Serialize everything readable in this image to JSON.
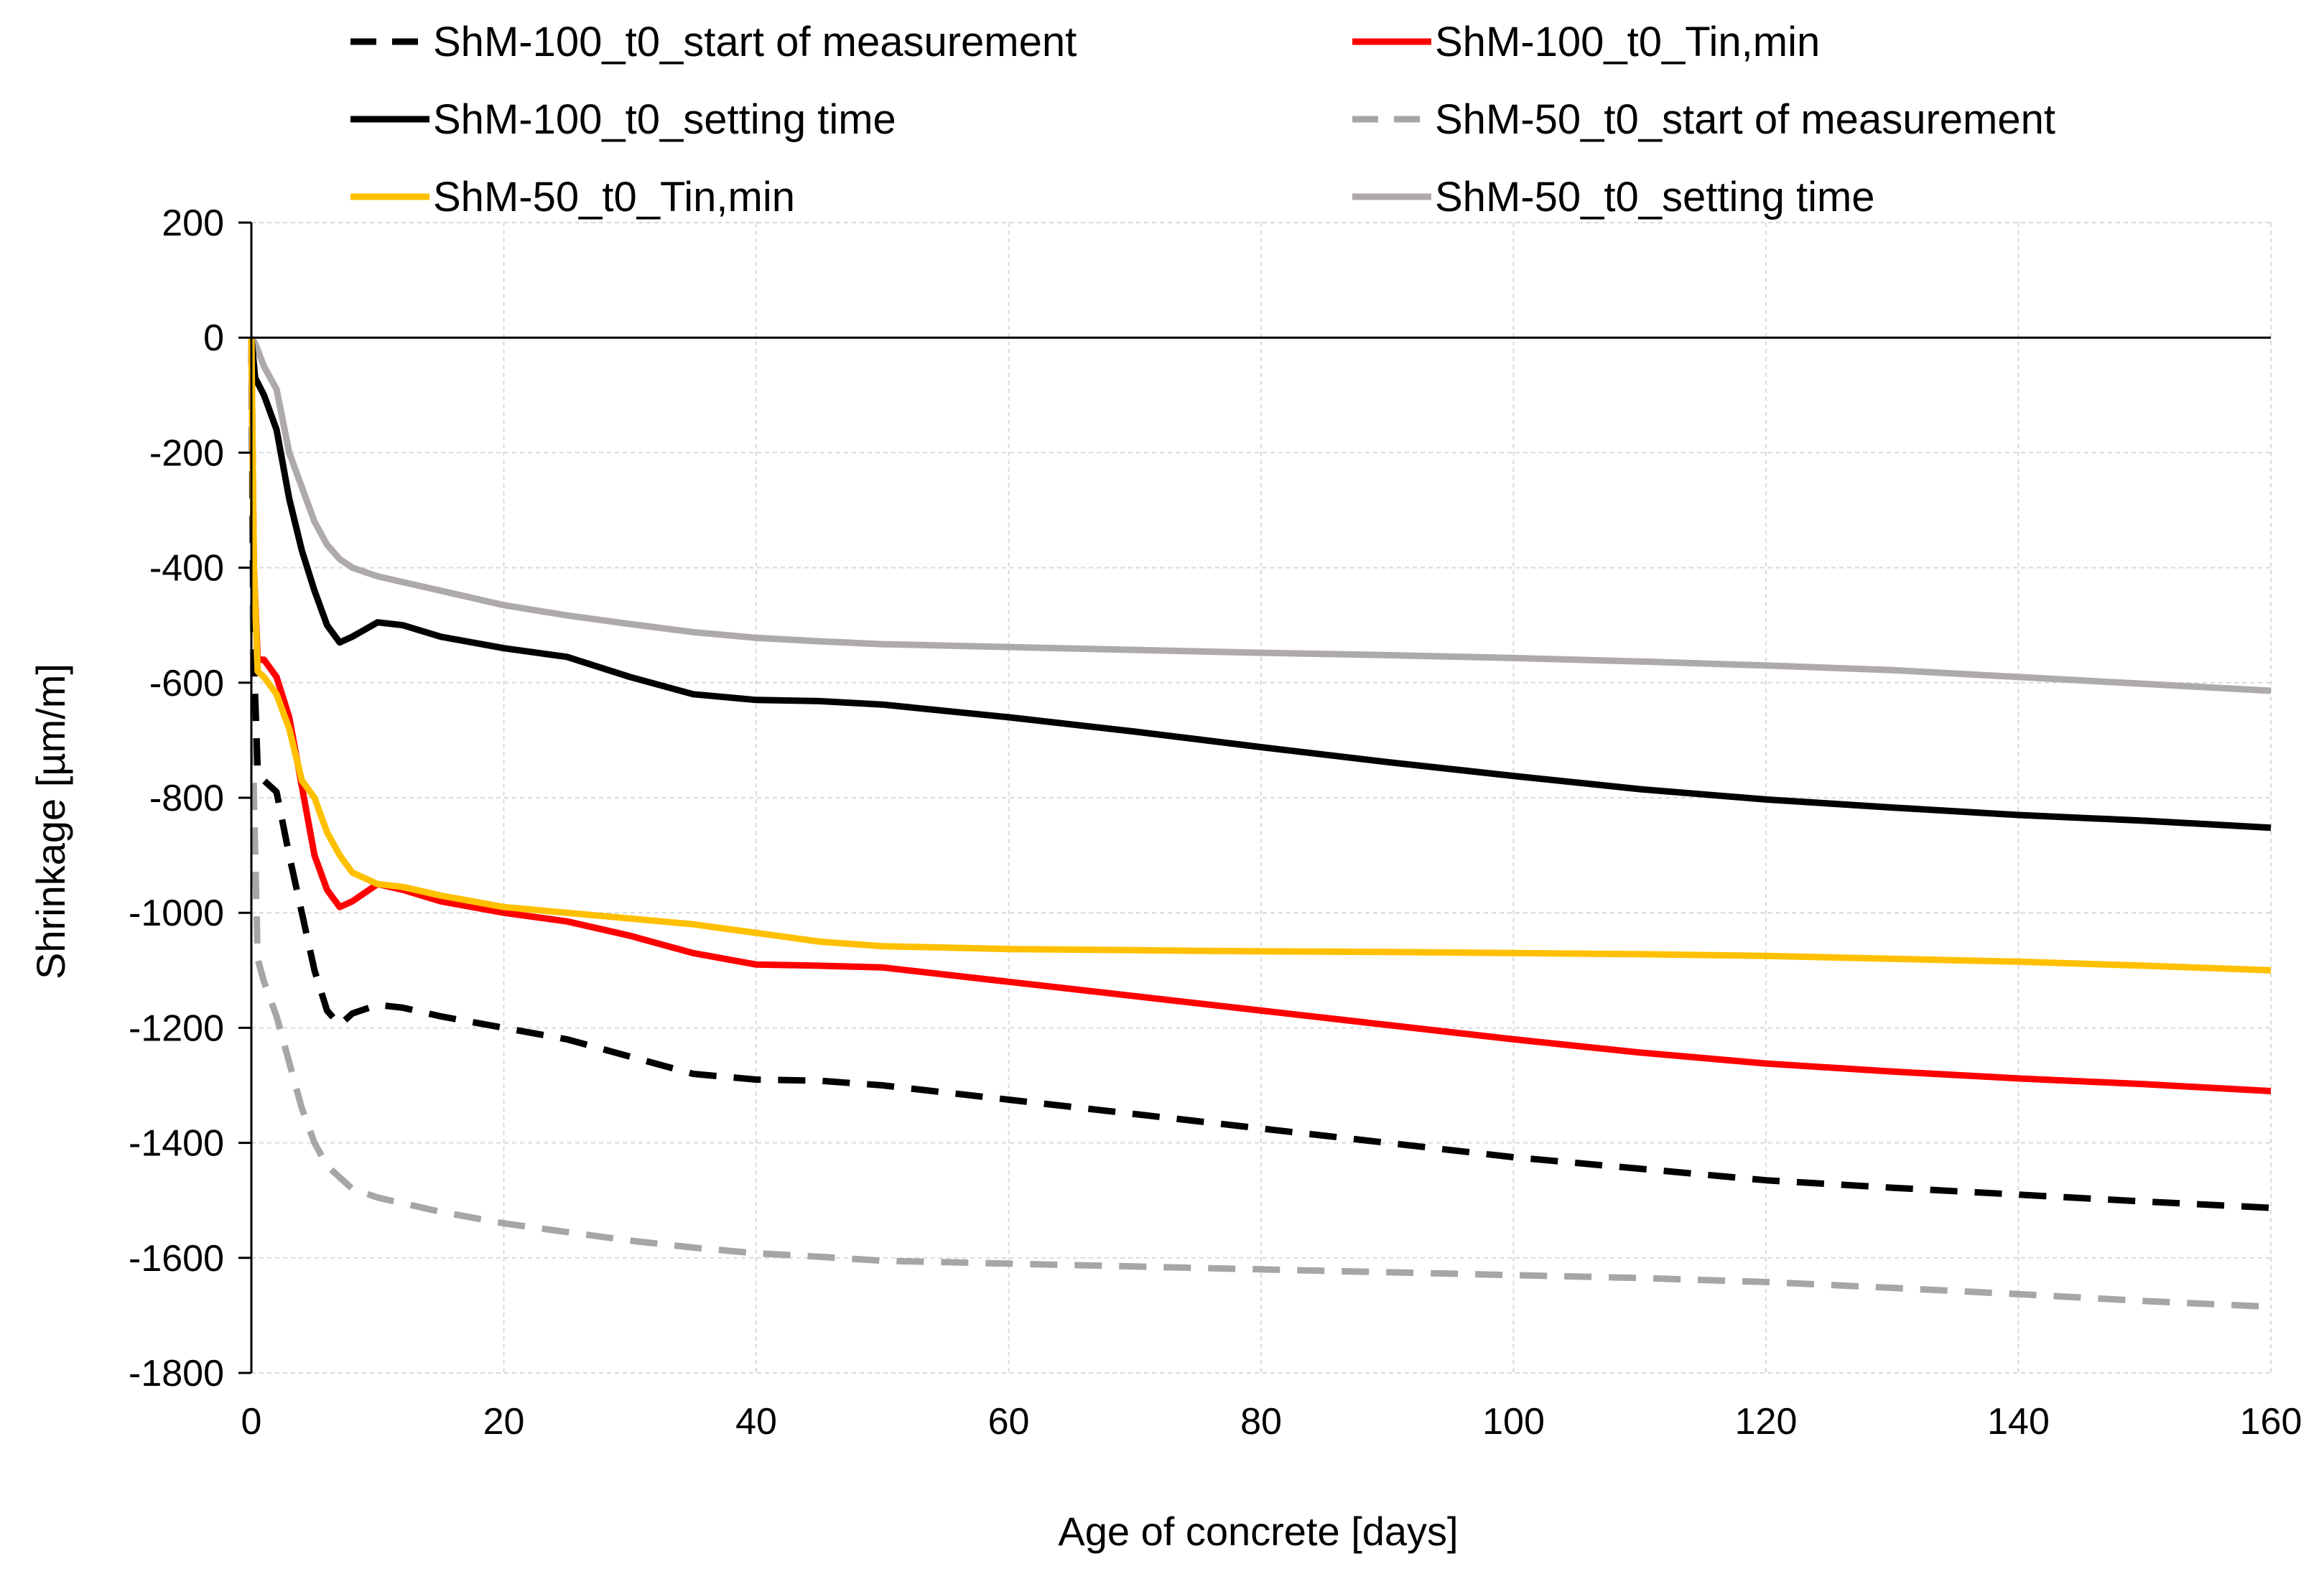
{
  "chart_data": {
    "type": "line",
    "title": "",
    "xlabel": "Age of concrete [days]",
    "ylabel": "Shrinkage [µm/m]",
    "xlim": [
      0,
      160
    ],
    "ylim": [
      -1800,
      200
    ],
    "xticks": [
      0,
      20,
      40,
      60,
      80,
      100,
      120,
      140,
      160
    ],
    "yticks": [
      200,
      0,
      -200,
      -400,
      -600,
      -800,
      -1000,
      -1200,
      -1400,
      -1600,
      -1800
    ],
    "grid": true,
    "legend_position": "top",
    "series": [
      {
        "name": "ShM-100_t0_start of measurement",
        "color": "#000000",
        "style": "dashed",
        "x": [
          0,
          0.2,
          0.5,
          1,
          2,
          3,
          4,
          5,
          6,
          7,
          8,
          10,
          12,
          15,
          20,
          25,
          30,
          35,
          40,
          45,
          50,
          60,
          70,
          80,
          90,
          100,
          110,
          120,
          130,
          140,
          150,
          160
        ],
        "y": [
          0,
          -560,
          -750,
          -770,
          -790,
          -900,
          -1000,
          -1100,
          -1170,
          -1195,
          -1175,
          -1160,
          -1165,
          -1180,
          -1200,
          -1220,
          -1250,
          -1280,
          -1290,
          -1292,
          -1300,
          -1325,
          -1350,
          -1375,
          -1400,
          -1425,
          -1445,
          -1465,
          -1478,
          -1490,
          -1502,
          -1513
        ]
      },
      {
        "name": "ShM-100_t0_Tin,min",
        "color": "#ff0000",
        "style": "solid",
        "x": [
          0,
          0.2,
          0.5,
          1,
          2,
          3,
          4,
          5,
          6,
          7,
          8,
          10,
          12,
          15,
          20,
          25,
          30,
          35,
          40,
          45,
          50,
          60,
          70,
          80,
          90,
          100,
          110,
          120,
          130,
          140,
          150,
          160
        ],
        "y": [
          0,
          -400,
          -560,
          -560,
          -590,
          -660,
          -780,
          -900,
          -960,
          -990,
          -980,
          -950,
          -960,
          -980,
          -1000,
          -1015,
          -1040,
          -1070,
          -1090,
          -1092,
          -1095,
          -1120,
          -1145,
          -1170,
          -1195,
          -1220,
          -1243,
          -1262,
          -1276,
          -1288,
          -1298,
          -1310
        ]
      },
      {
        "name": "ShM-100_t0_setting time",
        "color": "#000000",
        "style": "solid",
        "x": [
          0,
          0.3,
          1,
          2,
          3,
          4,
          5,
          6,
          7,
          8,
          10,
          12,
          15,
          20,
          25,
          30,
          35,
          40,
          45,
          50,
          60,
          70,
          80,
          90,
          100,
          110,
          120,
          130,
          140,
          150,
          160
        ],
        "y": [
          0,
          -70,
          -100,
          -160,
          -280,
          -370,
          -440,
          -500,
          -530,
          -520,
          -495,
          -500,
          -520,
          -540,
          -555,
          -590,
          -620,
          -630,
          -632,
          -638,
          -660,
          -685,
          -712,
          -738,
          -762,
          -785,
          -803,
          -817,
          -830,
          -840,
          -852
        ]
      },
      {
        "name": "ShM-50_t0_start of measurement",
        "color": "#a6a6a6",
        "style": "dashed",
        "x": [
          0,
          0.2,
          0.5,
          1,
          2,
          3,
          4,
          5,
          6,
          7,
          8,
          10,
          12,
          15,
          20,
          25,
          30,
          35,
          40,
          45,
          50,
          60,
          70,
          80,
          90,
          100,
          110,
          120,
          130,
          140,
          150,
          160
        ],
        "y": [
          0,
          -800,
          -1080,
          -1120,
          -1180,
          -1260,
          -1340,
          -1400,
          -1440,
          -1460,
          -1480,
          -1495,
          -1505,
          -1520,
          -1540,
          -1555,
          -1570,
          -1582,
          -1592,
          -1598,
          -1605,
          -1610,
          -1615,
          -1620,
          -1625,
          -1630,
          -1635,
          -1642,
          -1652,
          -1663,
          -1675,
          -1685
        ]
      },
      {
        "name": "ShM-50_t0_Tin,min",
        "color": "#ffc000",
        "style": "solid",
        "x": [
          0,
          0.2,
          0.5,
          1,
          2,
          3,
          4,
          5,
          6,
          7,
          8,
          10,
          12,
          15,
          20,
          25,
          30,
          35,
          40,
          45,
          50,
          60,
          70,
          80,
          90,
          100,
          110,
          120,
          130,
          140,
          150,
          160
        ],
        "y": [
          0,
          -400,
          -580,
          -590,
          -620,
          -680,
          -770,
          -800,
          -860,
          -900,
          -930,
          -950,
          -955,
          -970,
          -990,
          -1000,
          -1010,
          -1020,
          -1035,
          -1050,
          -1058,
          -1063,
          -1065,
          -1067,
          -1068,
          -1070,
          -1072,
          -1075,
          -1080,
          -1085,
          -1092,
          -1100
        ]
      },
      {
        "name": "ShM-50_t0_setting time",
        "color": "#aeaaaa",
        "style": "solid",
        "x": [
          0,
          0.3,
          1,
          2,
          3,
          4,
          5,
          6,
          7,
          8,
          10,
          12,
          15,
          20,
          25,
          30,
          35,
          40,
          45,
          50,
          60,
          70,
          80,
          90,
          100,
          110,
          120,
          130,
          140,
          150,
          160
        ],
        "y": [
          0,
          -10,
          -50,
          -90,
          -200,
          -260,
          -320,
          -360,
          -385,
          -400,
          -415,
          -425,
          -440,
          -465,
          -483,
          -498,
          -512,
          -522,
          -528,
          -533,
          -538,
          -543,
          -548,
          -552,
          -557,
          -563,
          -570,
          -578,
          -590,
          -602,
          -614
        ]
      }
    ]
  }
}
